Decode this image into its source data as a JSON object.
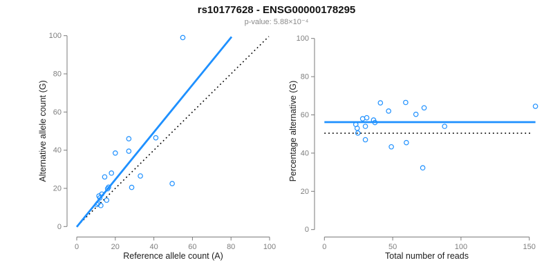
{
  "title": "rs10177628 - ENSG00000178295",
  "subtitle": "p-value: 5.88×10⁻⁴",
  "colors": {
    "accent_blue": "#1E90FF",
    "dotted_line": "#000000",
    "axis": "#7a7a7a",
    "tick_label": "#7e7e7e",
    "axis_title": "#1c1c1c",
    "title": "#111111",
    "subtitle": "#8a8a8a"
  },
  "chart_data": [
    {
      "type": "scatter",
      "panel": "left",
      "xlabel": "Reference allele count (A)",
      "ylabel": "Alternative allele count (G)",
      "xlim": [
        0,
        100
      ],
      "ylim": [
        0,
        100
      ],
      "xticks": [
        0,
        20,
        40,
        60,
        80,
        100
      ],
      "yticks": [
        0,
        20,
        40,
        60,
        80,
        100
      ],
      "grid": false,
      "point_color": "#1E90FF",
      "points": [
        [
          55,
          99
        ],
        [
          27,
          46
        ],
        [
          41,
          46.5
        ],
        [
          20,
          38.5
        ],
        [
          27,
          39.5
        ],
        [
          18,
          28
        ],
        [
          14.5,
          26
        ],
        [
          33,
          26.5
        ],
        [
          49.5,
          22.5
        ],
        [
          28.5,
          20.5
        ],
        [
          16,
          19.8
        ],
        [
          16.5,
          20.6
        ],
        [
          13,
          17
        ],
        [
          11.5,
          16
        ],
        [
          15.5,
          13.8
        ],
        [
          12,
          15
        ],
        [
          10.5,
          11.5
        ],
        [
          12.5,
          11
        ],
        [
          11,
          12.2
        ]
      ],
      "lines": [
        {
          "name": "identity-line",
          "style": "dotted",
          "color": "#000000",
          "from": [
            0.5,
            0.5
          ],
          "to": [
            99.6,
            99.6
          ]
        },
        {
          "name": "fit-line",
          "style": "solid",
          "color": "#1E90FF",
          "from": [
            0,
            -0.2
          ],
          "to": [
            80.3,
            99.4
          ]
        }
      ]
    },
    {
      "type": "scatter",
      "panel": "right",
      "xlabel": "Total number of reads",
      "ylabel": "Percentage alternative (G)",
      "xlim": [
        0,
        150
      ],
      "ylim": [
        0,
        100
      ],
      "xticks": [
        0,
        50,
        100,
        150
      ],
      "yticks": [
        0,
        20,
        40,
        60,
        80,
        100
      ],
      "grid": false,
      "point_color": "#1E90FF",
      "points": [
        [
          41,
          66.3
        ],
        [
          59.5,
          66.5
        ],
        [
          154.5,
          64.5
        ],
        [
          73,
          63.7
        ],
        [
          47,
          62
        ],
        [
          67,
          60.3
        ],
        [
          31,
          58.5
        ],
        [
          28,
          58
        ],
        [
          36,
          57.3
        ],
        [
          37,
          56
        ],
        [
          23,
          55
        ],
        [
          30,
          54
        ],
        [
          88,
          54
        ],
        [
          24,
          53
        ],
        [
          24.5,
          50.5
        ],
        [
          30,
          47
        ],
        [
          60,
          45.5
        ],
        [
          49,
          43.3
        ],
        [
          72,
          32.3
        ]
      ],
      "lines": [
        {
          "name": "mean-percentage-line",
          "style": "solid",
          "color": "#1E90FF",
          "from": [
            0,
            56.2
          ],
          "to": [
            154.5,
            56.2
          ]
        },
        {
          "name": "fifty-percent-line",
          "style": "dotted",
          "color": "#000000",
          "from": [
            0,
            50.4
          ],
          "to": [
            151,
            50.4
          ]
        }
      ]
    }
  ]
}
